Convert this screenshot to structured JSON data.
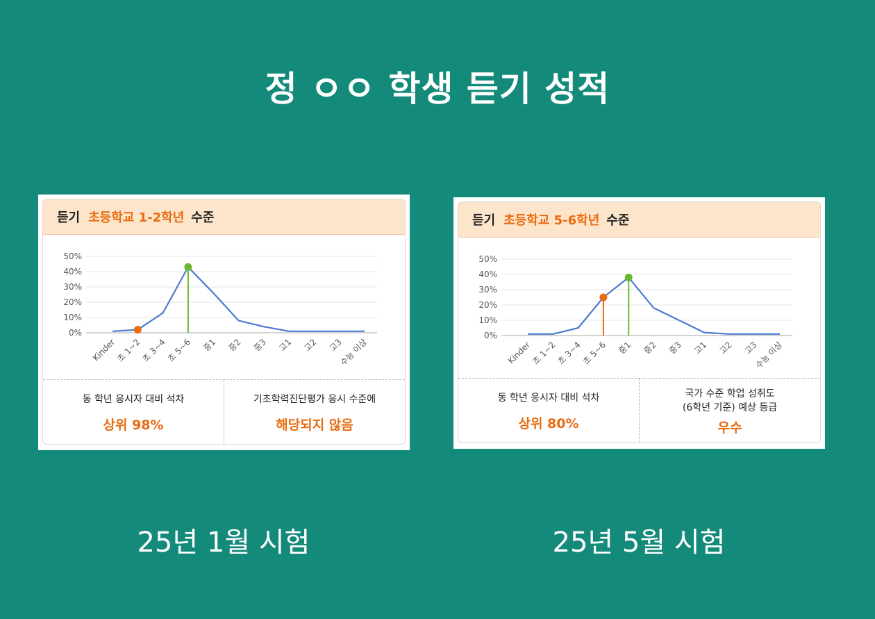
{
  "title": "정 ㅇㅇ 학생 듣기 성적",
  "colors": {
    "background": "#138a7a",
    "header_bg": "#fde5cb",
    "accent": "#ea6a10",
    "line": "#4a7ad0",
    "peak": "#6ab82e"
  },
  "charts": [
    {
      "header": {
        "prefix": "듣기",
        "highlight": "초등학교 1-2학년",
        "suffix": "수준"
      },
      "stats": [
        {
          "label": "동 학년 응시자 대비 석차",
          "value": "상위 98%"
        },
        {
          "label": "기초학력진단평가 응시 수준에",
          "value": "해당되지 않음"
        }
      ],
      "exam_label": "25년 1월 시험"
    },
    {
      "header": {
        "prefix": "듣기",
        "highlight": "초등학교 5-6학년",
        "suffix": "수준"
      },
      "stats": [
        {
          "label": "국가 수준 학업 성취도\n(6학년 기준) 예상 등급",
          "value": "우수"
        },
        {
          "label": "동 학년 응시자 대비 석차",
          "value": "상위 80%"
        }
      ],
      "exam_label": "25년 5월 시험"
    }
  ],
  "chart_data": [
    {
      "type": "line",
      "categories": [
        "Kinder",
        "초 1~2",
        "초 3~4",
        "초 5~6",
        "중1",
        "중2",
        "중3",
        "고1",
        "고2",
        "고3",
        "수능 이상"
      ],
      "values": [
        1,
        2,
        13,
        43,
        26,
        8,
        4,
        1,
        1,
        1,
        1
      ],
      "y_ticks": [
        "0%",
        "10%",
        "20%",
        "30%",
        "40%",
        "50%"
      ],
      "ylim": [
        0,
        50
      ],
      "student_index": 1,
      "peak_index": 3,
      "grid": true
    },
    {
      "type": "line",
      "categories": [
        "Kinder",
        "초 1~2",
        "초 3~4",
        "초 5~6",
        "중1",
        "중2",
        "중3",
        "고1",
        "고2",
        "고3",
        "수능 이상"
      ],
      "values": [
        1,
        1,
        5,
        25,
        38,
        18,
        10,
        2,
        1,
        1,
        1
      ],
      "y_ticks": [
        "0%",
        "10%",
        "20%",
        "30%",
        "40%",
        "50%"
      ],
      "ylim": [
        0,
        50
      ],
      "student_index": 3,
      "peak_index": 4,
      "grid": true
    }
  ]
}
